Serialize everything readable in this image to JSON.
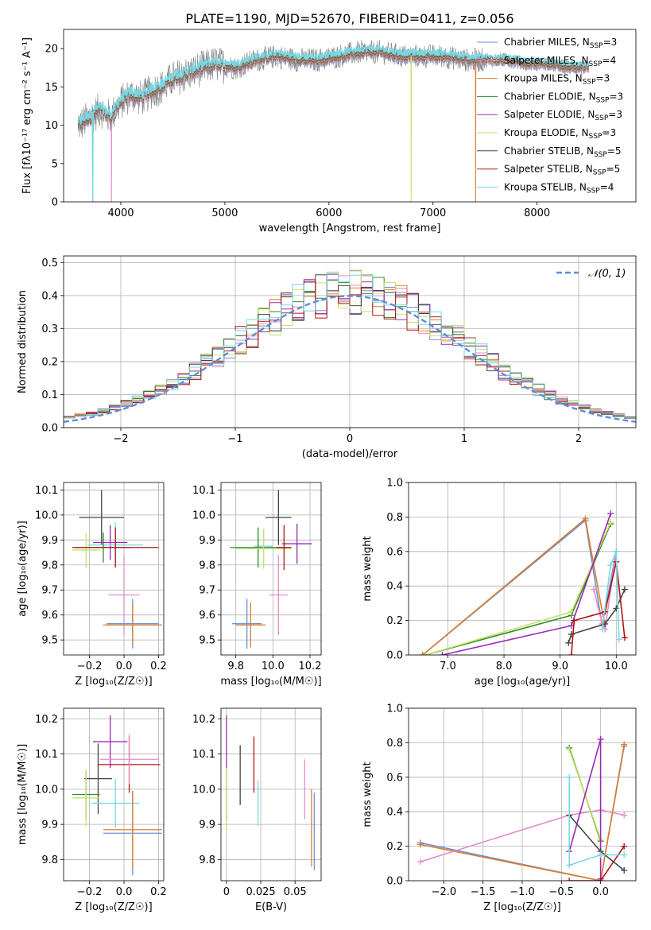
{
  "colors": {
    "Chabrier MILES": "#6a93d6",
    "Salpeter MILES": "#e58bc7",
    "Kroupa MILES": "#e07b2a",
    "Chabrier ELODIE": "#2f8a2f",
    "Salpeter ELODIE": "#9a2ab5",
    "Kroupa ELODIE": "#c9e067",
    "Chabrier STELIB": "#444444",
    "Salpeter STELIB": "#b01414",
    "Kroupa STELIB": "#77d8e3",
    "normal": "#5b8fd6",
    "grid": "#b0b0b0"
  },
  "chart_data": [
    {
      "id": "spectrum",
      "type": "line",
      "title": "PLATE=1190, MJD=52670, FIBERID=0411, z=0.056",
      "xlabel": "wavelength [Angstrom, rest frame]",
      "ylabel": "Flux [fλ10⁻¹⁷ erg cm⁻² s⁻¹ A⁻¹]",
      "xlim": [
        3450,
        8950
      ],
      "ylim": [
        0,
        22.5
      ],
      "xticks": [
        4000,
        5000,
        6000,
        7000,
        8000
      ],
      "yticks": [
        0,
        5,
        10,
        15,
        20
      ],
      "grid": false,
      "legend_position": "right",
      "legend": [
        {
          "model": "Chabrier MILES",
          "nssp": "3"
        },
        {
          "model": "Salpeter MILES",
          "nssp": "4"
        },
        {
          "model": "Kroupa MILES",
          "nssp": "3"
        },
        {
          "model": "Chabrier ELODIE",
          "nssp": "3"
        },
        {
          "model": "Salpeter ELODIE",
          "nssp": "3"
        },
        {
          "model": "Kroupa ELODIE",
          "nssp": "3"
        },
        {
          "model": "Chabrier STELIB",
          "nssp": "5"
        },
        {
          "model": "Salpeter STELIB",
          "nssp": "5"
        },
        {
          "model": "Kroupa STELIB",
          "nssp": "4"
        }
      ],
      "data_curve": {
        "x": [
          3600,
          3700,
          3800,
          3900,
          4000,
          4100,
          4200,
          4300,
          4400,
          4500,
          4700,
          4900,
          5100,
          5300,
          5500,
          5700,
          5900,
          6100,
          6300,
          6500,
          6700,
          6900,
          7100,
          7300,
          7500,
          7700,
          7900,
          8100,
          8300,
          8500
        ],
        "y": [
          10,
          11,
          12,
          11,
          13,
          14,
          13.5,
          14.5,
          15,
          16,
          17,
          18,
          17.5,
          18.5,
          19,
          18.5,
          18.5,
          19,
          19.5,
          19.5,
          19,
          19,
          19,
          18.5,
          18.5,
          18.5,
          18,
          18,
          17.5,
          17.5
        ]
      },
      "model_drop_x": {
        "Kroupa MILES": 7410,
        "Kroupa ELODIE": 6790,
        "Kroupa STELIB": 3730,
        "Salpeter MILES": 3910
      }
    },
    {
      "id": "residuals",
      "type": "histogram",
      "xlabel": "(data-model)/error",
      "ylabel": "Normed distribution",
      "xlim": [
        -2.5,
        2.5
      ],
      "ylim": [
        0,
        0.52
      ],
      "xticks": [
        -2,
        -1,
        0,
        1,
        2
      ],
      "yticks": [
        0.0,
        0.1,
        0.2,
        0.3,
        0.4,
        0.5
      ],
      "grid": true,
      "legend_position": "top-right",
      "reference_label": "𝒩(0, 1)",
      "reference": "standard normal pdf",
      "bin_width": 0.1
    },
    {
      "id": "age-vs-Z",
      "type": "errorbar",
      "xlabel": "Z [log₁₀(Z/Z☉)]",
      "ylabel": "age  [log₁₀(age/yr)]",
      "xlim": [
        -0.35,
        0.23
      ],
      "ylim": [
        9.44,
        10.13
      ],
      "xticks": [
        -0.2,
        0.0,
        0.2
      ],
      "yticks": [
        9.5,
        9.6,
        9.7,
        9.8,
        9.9,
        10.0,
        10.1
      ],
      "grid": true,
      "points": [
        {
          "model": "Chabrier STELIB",
          "x": -0.13,
          "xerr": 0.13,
          "y": 9.99,
          "yerr": 0.11
        },
        {
          "model": "Salpeter ELODIE",
          "x": -0.08,
          "xerr": 0.1,
          "y": 9.89,
          "yerr": 0.07
        },
        {
          "model": "Kroupa STELIB",
          "x": -0.05,
          "xerr": 0.16,
          "y": 9.88,
          "yerr": 0.09
        },
        {
          "model": "Chabrier ELODIE",
          "x": -0.12,
          "xerr": 0.16,
          "y": 9.87,
          "yerr": 0.06
        },
        {
          "model": "Kroupa ELODIE",
          "x": -0.22,
          "xerr": 0.08,
          "y": 9.86,
          "yerr": 0.07
        },
        {
          "model": "Salpeter STELIB",
          "x": -0.05,
          "xerr": 0.25,
          "y": 9.87,
          "yerr": 0.08
        },
        {
          "model": "Salpeter MILES",
          "x": 0.0,
          "xerr": 0.09,
          "y": 9.68,
          "yerr": 0.16
        },
        {
          "model": "Chabrier MILES",
          "x": 0.05,
          "xerr": 0.15,
          "y": 9.565,
          "yerr": 0.1
        },
        {
          "model": "Kroupa MILES",
          "x": 0.05,
          "xerr": 0.17,
          "y": 9.56,
          "yerr": 0.08
        }
      ]
    },
    {
      "id": "age-vs-mass",
      "type": "errorbar",
      "xlabel": "mass [log₁₀(M/M☉)]",
      "ylabel": "",
      "xlim": [
        9.72,
        10.26
      ],
      "ylim": [
        9.44,
        10.13
      ],
      "xticks": [
        9.8,
        10.0,
        10.2
      ],
      "yticks": [
        9.5,
        9.6,
        9.7,
        9.8,
        9.9,
        10.0,
        10.1
      ],
      "grid": true,
      "points": [
        {
          "model": "Chabrier STELIB",
          "x": 10.03,
          "xerr": 0.07,
          "y": 9.99,
          "yerr": 0.11
        },
        {
          "model": "Salpeter ELODIE",
          "x": 10.13,
          "xerr": 0.08,
          "y": 9.885,
          "yerr": 0.08
        },
        {
          "model": "Kroupa STELIB",
          "x": 9.95,
          "xerr": 0.05,
          "y": 9.875,
          "yerr": 0.07
        },
        {
          "model": "Chabrier ELODIE",
          "x": 9.92,
          "xerr": 0.15,
          "y": 9.87,
          "yerr": 0.08
        },
        {
          "model": "Kroupa ELODIE",
          "x": 9.95,
          "xerr": 0.15,
          "y": 9.865,
          "yerr": 0.08
        },
        {
          "model": "Salpeter STELIB",
          "x": 10.06,
          "xerr": 0.04,
          "y": 9.87,
          "yerr": 0.09
        },
        {
          "model": "Salpeter MILES",
          "x": 10.03,
          "xerr": 0.05,
          "y": 9.68,
          "yerr": 0.16
        },
        {
          "model": "Chabrier MILES",
          "x": 9.86,
          "xerr": 0.08,
          "y": 9.565,
          "yerr": 0.1
        },
        {
          "model": "Kroupa MILES",
          "x": 9.88,
          "xerr": 0.08,
          "y": 9.56,
          "yerr": 0.09
        }
      ]
    },
    {
      "id": "weight-vs-age",
      "type": "line",
      "xlabel": "age  [log₁₀(age/yr)]",
      "ylabel": "mass weight",
      "xlim": [
        6.3,
        10.35
      ],
      "ylim": [
        0,
        1
      ],
      "xticks": [
        7,
        8,
        9,
        10
      ],
      "yticks": [
        0.0,
        0.2,
        0.4,
        0.6,
        0.8,
        1.0
      ],
      "grid": true,
      "series": [
        {
          "model": "Chabrier MILES",
          "x": [
            6.55,
            9.45,
            9.75,
            10.0
          ],
          "y": [
            0.0,
            0.78,
            0.17,
            0.6
          ]
        },
        {
          "model": "Kroupa MILES",
          "x": [
            6.55,
            9.45,
            9.78
          ],
          "y": [
            0.0,
            0.79,
            0.2
          ]
        },
        {
          "model": "Salpeter MILES",
          "x": [
            9.6,
            9.75,
            9.8,
            10.0
          ],
          "y": [
            0.38,
            0.18,
            0.15,
            0.6
          ]
        },
        {
          "model": "Chabrier ELODIE",
          "x": [
            6.6,
            9.2,
            9.9
          ],
          "y": [
            0.0,
            0.23,
            0.76
          ]
        },
        {
          "model": "Kroupa ELODIE",
          "x": [
            6.6,
            9.2,
            9.9
          ],
          "y": [
            0.0,
            0.25,
            0.77
          ]
        },
        {
          "model": "Salpeter ELODIE",
          "x": [
            6.9,
            9.2,
            9.9
          ],
          "y": [
            0.0,
            0.17,
            0.82
          ]
        },
        {
          "model": "Chabrier STELIB",
          "x": [
            9.15,
            9.2,
            9.8,
            10.0,
            10.15
          ],
          "y": [
            0.07,
            0.12,
            0.18,
            0.27,
            0.38
          ]
        },
        {
          "model": "Salpeter STELIB",
          "x": [
            9.2,
            9.25,
            9.8,
            10.0,
            10.15
          ],
          "y": [
            0.0,
            0.2,
            0.25,
            0.54,
            0.1
          ]
        },
        {
          "model": "Kroupa STELIB",
          "x": [
            9.75,
            9.9,
            10.0,
            10.05
          ],
          "y": [
            0.15,
            0.52,
            0.6,
            0.09
          ]
        }
      ]
    },
    {
      "id": "mass-vs-Z",
      "type": "errorbar",
      "xlabel": "Z [log₁₀(Z/Z☉)]",
      "ylabel": "mass [log₁₀(M/M☉)]",
      "xlim": [
        -0.35,
        0.23
      ],
      "ylim": [
        9.74,
        10.23
      ],
      "xticks": [
        -0.2,
        0.0,
        0.2
      ],
      "yticks": [
        9.8,
        9.9,
        10.0,
        10.1,
        10.2
      ],
      "grid": true,
      "points": [
        {
          "model": "Salpeter ELODIE",
          "x": -0.08,
          "xerr": 0.1,
          "y": 10.135,
          "yerr": 0.075
        },
        {
          "model": "Salpeter STELIB",
          "x": 0.03,
          "xerr": 0.18,
          "y": 10.07,
          "yerr": 0.08
        },
        {
          "model": "Salpeter MILES",
          "x": 0.03,
          "xerr": 0.17,
          "y": 10.085,
          "yerr": 0.07
        },
        {
          "model": "Chabrier STELIB",
          "x": -0.15,
          "xerr": 0.08,
          "y": 10.03,
          "yerr": 0.1
        },
        {
          "model": "Chabrier ELODIE",
          "x": -0.22,
          "xerr": 0.08,
          "y": 9.985,
          "yerr": 0.07
        },
        {
          "model": "Kroupa ELODIE",
          "x": -0.22,
          "xerr": 0.08,
          "y": 9.975,
          "yerr": 0.08
        },
        {
          "model": "Kroupa STELIB",
          "x": -0.05,
          "xerr": 0.14,
          "y": 9.96,
          "yerr": 0.07
        },
        {
          "model": "Chabrier MILES",
          "x": 0.05,
          "xerr": 0.17,
          "y": 9.875,
          "yerr": 0.12
        },
        {
          "model": "Kroupa MILES",
          "x": 0.05,
          "xerr": 0.17,
          "y": 9.885,
          "yerr": 0.11
        }
      ]
    },
    {
      "id": "mass-vs-ebv",
      "type": "errorbar",
      "xlabel": "E(B-V)",
      "ylabel": "",
      "xlim": [
        -0.004,
        0.069
      ],
      "ylim": [
        9.74,
        10.23
      ],
      "xticks": [
        0.0,
        0.025,
        0.05
      ],
      "yticks": [
        9.8,
        9.9,
        10.0,
        10.1,
        10.2
      ],
      "grid": true,
      "points": [
        {
          "model": "Salpeter ELODIE",
          "x": 0.0,
          "y": 10.13,
          "yerr": 0.08
        },
        {
          "model": "Chabrier ELODIE",
          "x": 0.0,
          "y": 9.98,
          "yerr": 0.07
        },
        {
          "model": "Kroupa ELODIE",
          "x": 0.0,
          "y": 9.97,
          "yerr": 0.09
        },
        {
          "model": "Chabrier STELIB",
          "x": 0.01,
          "y": 10.04,
          "yerr": 0.085
        },
        {
          "model": "Salpeter STELIB",
          "x": 0.02,
          "y": 10.07,
          "yerr": 0.08
        },
        {
          "model": "Kroupa STELIB",
          "x": 0.023,
          "y": 9.96,
          "yerr": 0.065
        },
        {
          "model": "Salpeter MILES",
          "x": 0.057,
          "y": 10.0,
          "yerr": 0.085
        },
        {
          "model": "Kroupa MILES",
          "x": 0.062,
          "y": 9.89,
          "yerr": 0.11
        },
        {
          "model": "Chabrier MILES",
          "x": 0.064,
          "y": 9.88,
          "yerr": 0.11
        }
      ]
    },
    {
      "id": "weight-vs-Z",
      "type": "line",
      "xlabel": "Z [log₁₀(Z/Z☉)]",
      "ylabel": "mass weight",
      "xlim": [
        -2.45,
        0.45
      ],
      "ylim": [
        0,
        1
      ],
      "xticks": [
        -2.0,
        -1.5,
        -1.0,
        -0.5,
        0.0
      ],
      "yticks": [
        0.0,
        0.2,
        0.4,
        0.6,
        0.8,
        1.0
      ],
      "grid": true,
      "series": [
        {
          "model": "Chabrier MILES",
          "x": [
            -2.3,
            0.0,
            0.3
          ],
          "y": [
            0.22,
            0.0,
            0.78
          ]
        },
        {
          "model": "Kroupa MILES",
          "x": [
            -2.3,
            0.0,
            0.3
          ],
          "y": [
            0.21,
            0.0,
            0.79
          ]
        },
        {
          "model": "Salpeter MILES",
          "x": [
            -2.3,
            -0.4,
            0.0,
            0.3
          ],
          "y": [
            0.11,
            0.38,
            0.41,
            0.38
          ]
        },
        {
          "model": "Chabrier ELODIE",
          "x": [
            -0.4,
            0.0
          ],
          "y": [
            0.77,
            0.23
          ]
        },
        {
          "model": "Kroupa ELODIE",
          "x": [
            -0.4,
            0.0
          ],
          "y": [
            0.76,
            0.24
          ]
        },
        {
          "model": "Salpeter ELODIE",
          "x": [
            -0.4,
            0.0,
            0.0
          ],
          "y": [
            0.17,
            0.82,
            0.01
          ]
        },
        {
          "model": "Chabrier STELIB",
          "x": [
            -0.4,
            0.0,
            0.3
          ],
          "y": [
            0.38,
            0.17,
            0.06
          ]
        },
        {
          "model": "Salpeter STELIB",
          "x": [
            -0.4,
            0.0,
            0.3
          ],
          "y": [
            0.0,
            0.0,
            0.2
          ]
        },
        {
          "model": "Kroupa STELIB",
          "x": [
            -0.4,
            -0.4,
            0.0,
            0.3
          ],
          "y": [
            0.6,
            0.09,
            0.15,
            0.15
          ]
        }
      ]
    }
  ]
}
